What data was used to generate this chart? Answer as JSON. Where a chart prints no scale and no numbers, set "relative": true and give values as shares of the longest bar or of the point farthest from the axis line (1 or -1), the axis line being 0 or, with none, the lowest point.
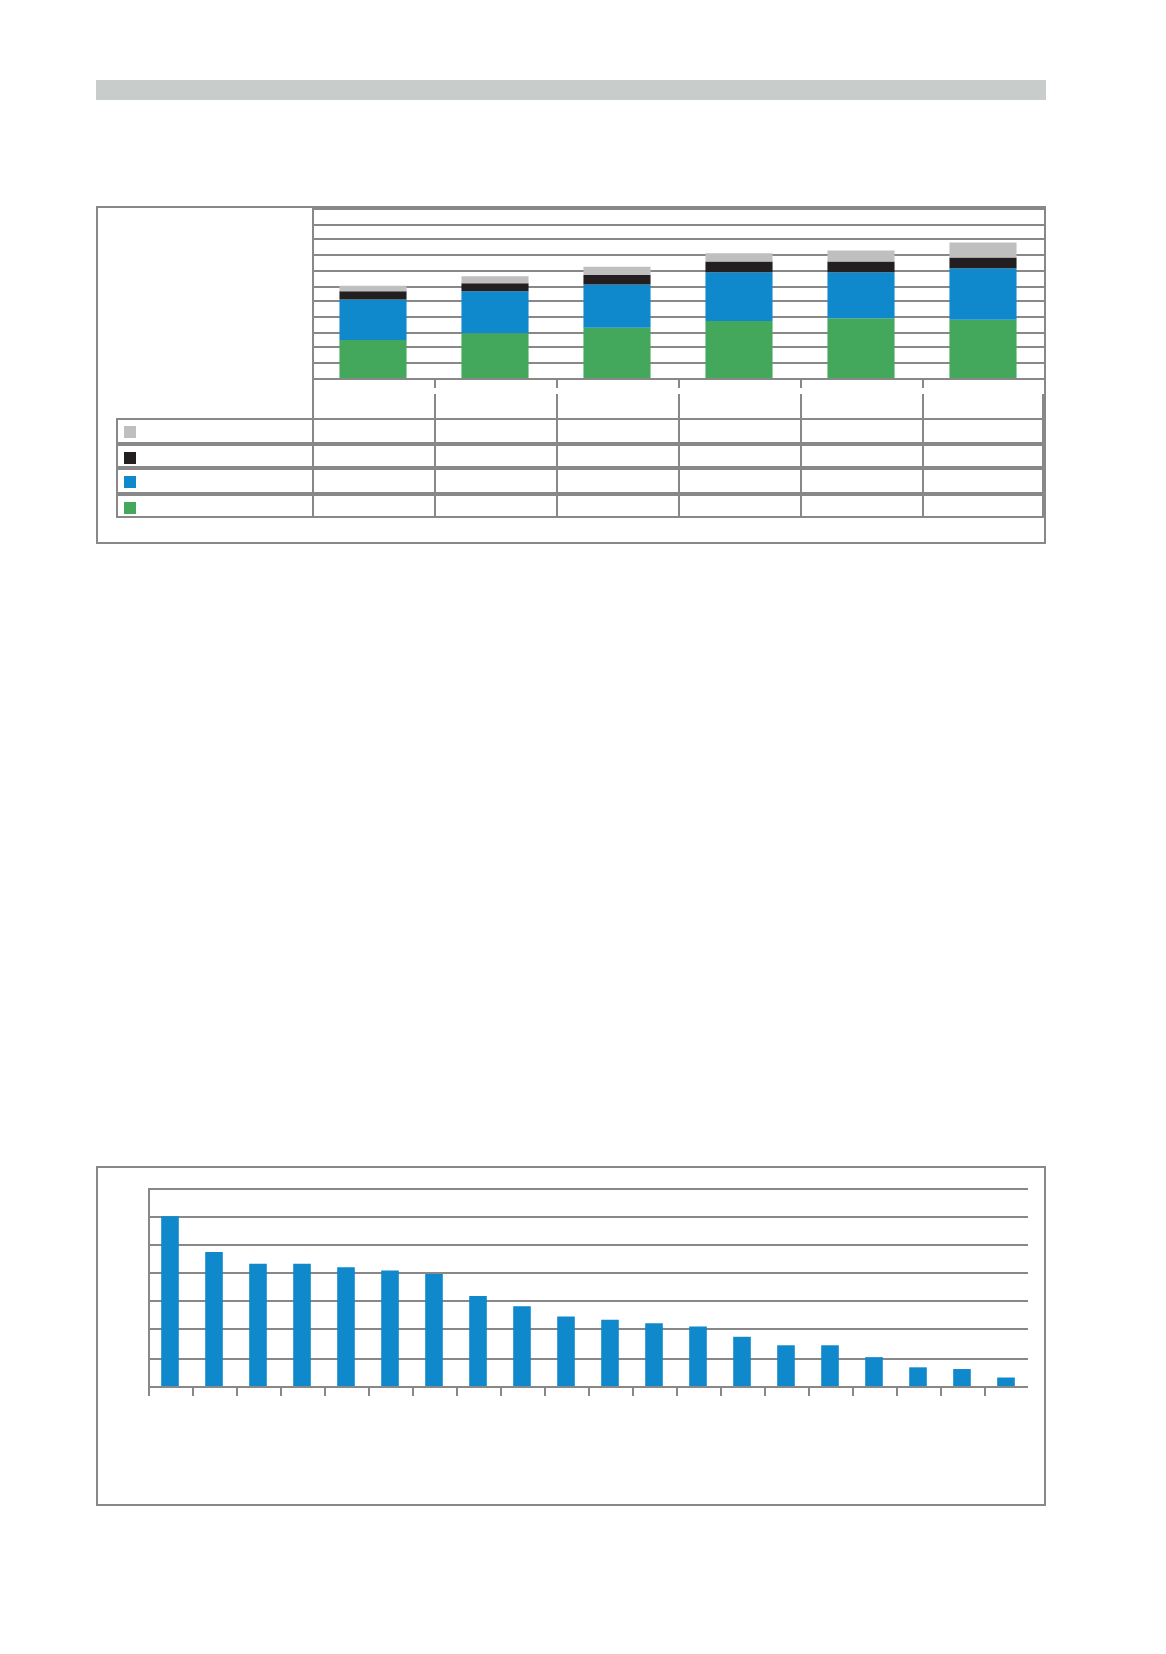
{
  "chart_data": [
    {
      "type": "bar",
      "stacked": true,
      "relative": true,
      "categories": [
        null,
        null,
        null,
        null,
        null,
        null
      ],
      "grid": "y",
      "series": [
        {
          "color": "#43a85b",
          "values": [
            0.28,
            0.33,
            0.37,
            0.42,
            0.44,
            0.43
          ]
        },
        {
          "color": "#1088cc",
          "values": [
            0.3,
            0.31,
            0.32,
            0.36,
            0.34,
            0.38
          ]
        },
        {
          "color": "#231f20",
          "values": [
            0.06,
            0.06,
            0.07,
            0.08,
            0.08,
            0.08
          ]
        },
        {
          "color": "#bfbfbf",
          "values": [
            0.04,
            0.05,
            0.06,
            0.06,
            0.08,
            0.11
          ]
        }
      ]
    },
    {
      "type": "bar",
      "relative": true,
      "categories": [
        null,
        null,
        null,
        null,
        null,
        null,
        null,
        null,
        null,
        null,
        null,
        null,
        null,
        null,
        null,
        null,
        null,
        null,
        null,
        null
      ],
      "grid": "y",
      "color": "#1088cc",
      "values": [
        1,
        0.79,
        0.72,
        0.72,
        0.7,
        0.68,
        0.66,
        0.53,
        0.47,
        0.41,
        0.39,
        0.37,
        0.35,
        0.29,
        0.24,
        0.24,
        0.17,
        0.11,
        0.1,
        0.05
      ]
    }
  ]
}
